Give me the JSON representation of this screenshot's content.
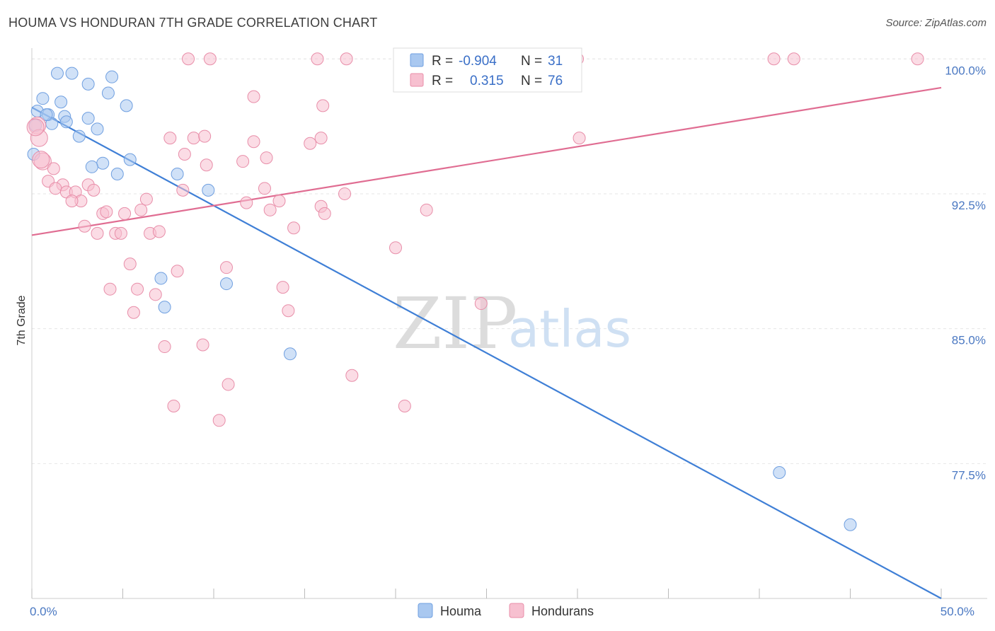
{
  "header": {
    "title": "HOUMA VS HONDURAN 7TH GRADE CORRELATION CHART",
    "source": "Source: ZipAtlas.com"
  },
  "watermark": {
    "zip": "ZIP",
    "atlas": "atlas"
  },
  "legend": {
    "rows": [
      {
        "r_label": "R =",
        "r_value": "-0.904",
        "n_label": "N =",
        "n_value": "31",
        "color": "#a9c8f0",
        "stroke": "#6f9fe0"
      },
      {
        "r_label": "R =",
        "r_value": "0.315",
        "n_label": "N =",
        "n_value": "76",
        "color": "#f7c0d0",
        "stroke": "#e88ea9"
      }
    ]
  },
  "bottom_legend": [
    {
      "label": "Houma",
      "color": "#a9c8f0",
      "stroke": "#6f9fe0"
    },
    {
      "label": "Hondurans",
      "color": "#f7c0d0",
      "stroke": "#e88ea9"
    }
  ],
  "chart_data": {
    "type": "scatter",
    "ylabel": "7th Grade",
    "xlabel": "",
    "xlim": [
      0,
      50
    ],
    "ylim": [
      70,
      100.6
    ],
    "x_tick_labels": [
      {
        "x": 0,
        "label": "0.0%"
      },
      {
        "x": 50,
        "label": "50.0%"
      }
    ],
    "y_tick_labels": [
      {
        "y": 100,
        "label": "100.0%"
      },
      {
        "y": 92.5,
        "label": "92.5%"
      },
      {
        "y": 85,
        "label": "85.0%"
      },
      {
        "y": 77.5,
        "label": "77.5%"
      }
    ],
    "grid": true,
    "series": [
      {
        "name": "Houma",
        "color": "#6f9fe0",
        "fill": "#a9c8f0",
        "line_color": "#3f7fd6",
        "trend": {
          "x0": 0,
          "y0": 97.3,
          "x1": 50,
          "y1": 70.0
        },
        "points": [
          [
            1.4,
            99.2
          ],
          [
            2.2,
            99.2
          ],
          [
            3.1,
            98.6
          ],
          [
            4.4,
            99.0
          ],
          [
            0.6,
            97.8
          ],
          [
            1.6,
            97.6
          ],
          [
            4.2,
            98.1
          ],
          [
            5.2,
            97.4
          ],
          [
            0.3,
            97.1
          ],
          [
            0.9,
            96.9
          ],
          [
            1.8,
            96.8
          ],
          [
            3.1,
            96.7
          ],
          [
            1.1,
            96.4
          ],
          [
            1.9,
            96.5
          ],
          [
            3.6,
            96.1
          ],
          [
            2.6,
            95.7
          ],
          [
            0.1,
            94.7
          ],
          [
            5.4,
            94.4
          ],
          [
            3.9,
            94.2
          ],
          [
            3.3,
            94.0
          ],
          [
            4.7,
            93.6
          ],
          [
            8.0,
            93.6
          ],
          [
            9.7,
            92.7
          ],
          [
            7.1,
            87.8
          ],
          [
            7.3,
            86.2
          ],
          [
            10.7,
            87.5
          ],
          [
            14.2,
            83.6
          ],
          [
            41.1,
            77.0
          ],
          [
            45.0,
            74.1
          ],
          [
            0.2,
            96.3
          ],
          [
            0.8,
            96.9
          ]
        ]
      },
      {
        "name": "Hondurans",
        "color": "#e88ea9",
        "fill": "#f7c0d0",
        "line_color": "#e06d92",
        "trend": {
          "x0": 0,
          "y0": 90.2,
          "x1": 50,
          "y1": 98.4
        },
        "points": [
          [
            8.6,
            100.0
          ],
          [
            9.8,
            100.0
          ],
          [
            15.7,
            100.0
          ],
          [
            17.3,
            100.0
          ],
          [
            28.3,
            100.0
          ],
          [
            30.0,
            100.0
          ],
          [
            40.8,
            100.0
          ],
          [
            41.9,
            100.0
          ],
          [
            48.7,
            100.0
          ],
          [
            12.2,
            97.9
          ],
          [
            16.0,
            97.4
          ],
          [
            0.3,
            96.3
          ],
          [
            0.4,
            95.6
          ],
          [
            7.6,
            95.6
          ],
          [
            8.9,
            95.6
          ],
          [
            9.5,
            95.7
          ],
          [
            12.2,
            95.4
          ],
          [
            15.3,
            95.3
          ],
          [
            15.9,
            95.6
          ],
          [
            30.1,
            95.6
          ],
          [
            8.4,
            94.7
          ],
          [
            11.6,
            94.3
          ],
          [
            12.9,
            94.5
          ],
          [
            9.6,
            94.1
          ],
          [
            0.6,
            94.3
          ],
          [
            1.2,
            93.9
          ],
          [
            0.9,
            93.2
          ],
          [
            1.7,
            93.0
          ],
          [
            1.3,
            92.8
          ],
          [
            1.9,
            92.6
          ],
          [
            2.4,
            92.6
          ],
          [
            3.1,
            93.0
          ],
          [
            3.4,
            92.7
          ],
          [
            8.3,
            92.7
          ],
          [
            12.8,
            92.8
          ],
          [
            17.2,
            92.5
          ],
          [
            2.7,
            92.1
          ],
          [
            6.3,
            92.2
          ],
          [
            11.8,
            92.0
          ],
          [
            13.1,
            91.6
          ],
          [
            13.6,
            92.1
          ],
          [
            2.2,
            92.1
          ],
          [
            3.9,
            91.4
          ],
          [
            4.1,
            91.5
          ],
          [
            5.1,
            91.4
          ],
          [
            6.0,
            91.6
          ],
          [
            15.9,
            91.8
          ],
          [
            16.1,
            91.4
          ],
          [
            21.7,
            91.6
          ],
          [
            2.9,
            90.7
          ],
          [
            3.6,
            90.3
          ],
          [
            4.6,
            90.3
          ],
          [
            4.9,
            90.3
          ],
          [
            6.5,
            90.3
          ],
          [
            7.0,
            90.4
          ],
          [
            14.4,
            90.6
          ],
          [
            20.0,
            89.5
          ],
          [
            5.4,
            88.6
          ],
          [
            8.0,
            88.2
          ],
          [
            10.7,
            88.4
          ],
          [
            4.3,
            87.2
          ],
          [
            5.8,
            87.2
          ],
          [
            6.8,
            86.9
          ],
          [
            13.8,
            87.3
          ],
          [
            24.7,
            86.4
          ],
          [
            5.6,
            85.9
          ],
          [
            14.1,
            86.0
          ],
          [
            7.3,
            84.0
          ],
          [
            9.4,
            84.1
          ],
          [
            17.6,
            82.4
          ],
          [
            10.8,
            81.9
          ],
          [
            7.8,
            80.7
          ],
          [
            20.5,
            80.7
          ],
          [
            10.3,
            79.9
          ],
          [
            0.2,
            96.2
          ],
          [
            0.5,
            94.4
          ]
        ]
      }
    ]
  }
}
